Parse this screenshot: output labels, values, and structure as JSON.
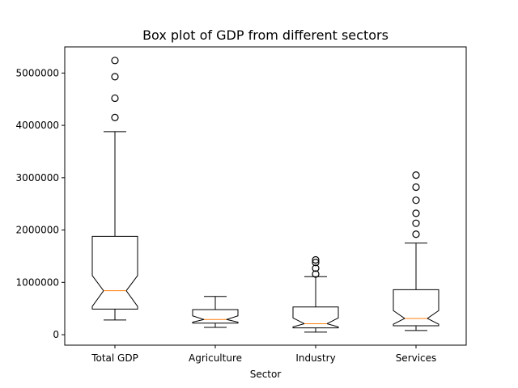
{
  "chart_data": {
    "type": "boxplot",
    "title": "Box plot of GDP from different sectors",
    "xlabel": "Sector",
    "ylabel": "",
    "ylim": [
      -200000,
      5500000
    ],
    "yticks": [
      0,
      1000000,
      2000000,
      3000000,
      4000000,
      5000000
    ],
    "ytick_labels": [
      "0",
      "1000000",
      "2000000",
      "3000000",
      "4000000",
      "5000000"
    ],
    "notched": true,
    "grid": false,
    "colors": {
      "box": "#000000",
      "median": "#ff7f0e",
      "flier": "#000000"
    },
    "categories": [
      "Total GDP",
      "Agriculture",
      "Industry",
      "Services"
    ],
    "boxes": [
      {
        "name": "Total GDP",
        "whisker_low": 280000,
        "q1": 490000,
        "median": 840000,
        "q3": 1880000,
        "whisker_high": 3880000,
        "notch_low": 540000,
        "notch_high": 1130000,
        "fliers": [
          4150000,
          4520000,
          4930000,
          5240000
        ]
      },
      {
        "name": "Agriculture",
        "whisker_low": 140000,
        "q1": 220000,
        "median": 290000,
        "q3": 480000,
        "whisker_high": 730000,
        "notch_low": 240000,
        "notch_high": 360000,
        "fliers": []
      },
      {
        "name": "Industry",
        "whisker_low": 50000,
        "q1": 130000,
        "median": 210000,
        "q3": 530000,
        "whisker_high": 1110000,
        "notch_low": 150000,
        "notch_high": 320000,
        "fliers": [
          1160000,
          1270000,
          1380000,
          1430000
        ]
      },
      {
        "name": "Services",
        "whisker_low": 80000,
        "q1": 170000,
        "median": 310000,
        "q3": 860000,
        "whisker_high": 1750000,
        "notch_low": 200000,
        "notch_high": 460000,
        "fliers": [
          1920000,
          2130000,
          2320000,
          2570000,
          2820000,
          3050000
        ]
      }
    ]
  }
}
